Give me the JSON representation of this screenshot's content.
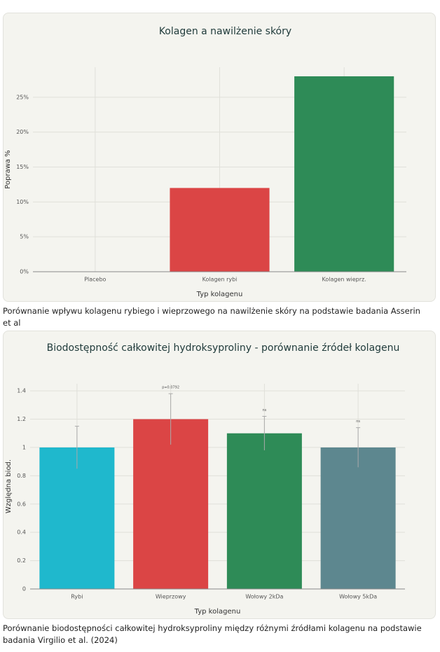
{
  "chart_data": [
    {
      "type": "bar",
      "title": "Kolagen a nawilżenie skóry",
      "ylabel": "Poprawa %",
      "xlabel": "Typ kolagenu",
      "categories": [
        "Placebo",
        "Kolagen rybi",
        "Kolagen wieprz."
      ],
      "values": [
        0,
        12,
        28
      ],
      "colors": [
        "#9a9a9a",
        "#db4545",
        "#2e8b57"
      ],
      "ylim": [
        0,
        29.3
      ],
      "yticks": [
        {
          "value": 0,
          "label": "0%"
        },
        {
          "value": 5,
          "label": "5%"
        },
        {
          "value": 10,
          "label": "10%"
        },
        {
          "value": 15,
          "label": "15%"
        },
        {
          "value": 20,
          "label": "20%"
        },
        {
          "value": 25,
          "label": "25%"
        }
      ],
      "grid": true,
      "caption": "Porównanie wpływu kolagenu rybiego i wieprzowego na nawilżenie skóry na podstawie badania Asserin et al"
    },
    {
      "type": "bar",
      "title": "Biodostępność całkowitej hydroksyproliny - porównanie źródeł kolagenu",
      "ylabel": "Względna biod.",
      "xlabel": "Typ kolagenu",
      "categories": [
        "Rybi",
        "Wieprzowy",
        "Wołowy 2kDa",
        "Wołowy 5kDa"
      ],
      "values": [
        1,
        1.2,
        1.1,
        1
      ],
      "errors": [
        0.15,
        0.18,
        0.12,
        0.14
      ],
      "colors": [
        "#1fb8cd",
        "#db4545",
        "#2e8b57",
        "#5d878f"
      ],
      "annotations": [
        {
          "x": "Wieprzowy",
          "text": "p=0.0792"
        },
        {
          "x": "Wołowy 2kDa",
          "text": "ns"
        },
        {
          "x": "Wołowy 5kDa",
          "text": "ns"
        }
      ],
      "ylim": [
        0,
        1.45
      ],
      "yticks": [
        0,
        0.2,
        0.4,
        0.6,
        0.8,
        1,
        1.2,
        1.4
      ],
      "grid": true,
      "caption": "Porównanie biodostępności całkowitej hydroksyproliny między różnymi źródłami kolagenu na podstawie badania Virgilio et al. (2024)"
    }
  ]
}
